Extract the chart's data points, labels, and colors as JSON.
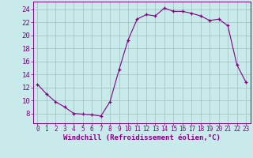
{
  "x": [
    0,
    1,
    2,
    3,
    4,
    5,
    6,
    7,
    8,
    9,
    10,
    11,
    12,
    13,
    14,
    15,
    16,
    17,
    18,
    19,
    20,
    21,
    22,
    23
  ],
  "y": [
    12.5,
    11.0,
    9.8,
    9.0,
    8.0,
    7.9,
    7.8,
    7.6,
    9.8,
    14.7,
    19.3,
    22.5,
    23.2,
    23.0,
    24.2,
    23.7,
    23.7,
    23.4,
    23.0,
    22.3,
    22.5,
    21.5,
    15.5,
    12.8
  ],
  "line_color": "#800080",
  "marker": "+",
  "marker_color": "#800080",
  "bg_color": "#c8eaea",
  "grid_color": "#a0c0c0",
  "xlabel": "Windchill (Refroidissement éolien,°C)",
  "xlabel_color": "#800080",
  "tick_color": "#800080",
  "spine_color": "#800080",
  "xlim": [
    -0.5,
    23.5
  ],
  "ylim": [
    6.5,
    25.2
  ],
  "yticks": [
    8,
    10,
    12,
    14,
    16,
    18,
    20,
    22,
    24
  ],
  "xticks": [
    0,
    1,
    2,
    3,
    4,
    5,
    6,
    7,
    8,
    9,
    10,
    11,
    12,
    13,
    14,
    15,
    16,
    17,
    18,
    19,
    20,
    21,
    22,
    23
  ],
  "xlabel_fontsize": 6.5,
  "ytick_fontsize": 6.5,
  "xtick_fontsize": 5.5
}
